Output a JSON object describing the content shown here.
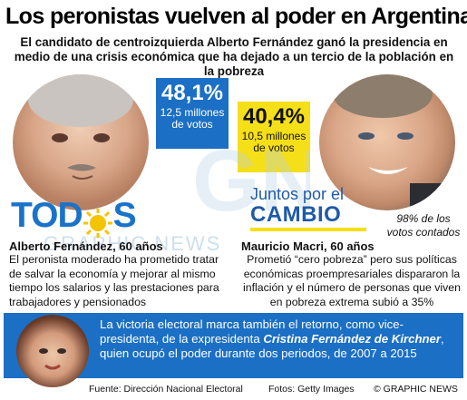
{
  "headline": "Los peronistas vuelven al poder en Argentina",
  "subheadline": "El candidato de centroizquierda Alberto Fernández ganó la presidencia en medio de una crisis económica que ha dejado a un tercio de la población en la pobreza",
  "fernandez": {
    "percent": "48,1%",
    "votes": "12,5 millones de votos",
    "party_logo": "TODOS",
    "name": "Alberto Fernández, 60 años",
    "description": "El peronista moderado ha prometido tratar de salvar la economía y mejorar al mismo tiempo los salarios y las prestaciones para trabajadores y pensionados"
  },
  "macri": {
    "percent": "40,4%",
    "votes": "10,5 millones de votos",
    "party_logo_top": "Juntos por el",
    "party_logo_bottom": "CAMBIO",
    "name": "Mauricio Macri, 60 años",
    "description": "Prometió “cero pobreza” pero sus políticas económicas proempresariales dispararon la inflación y el número de personas que viven en pobreza extrema subió a 35%"
  },
  "counted_note": "98% de los votos contados",
  "watermark": "GRAPHIC NEWS",
  "panel": {
    "text_before": "La victoria electoral marca también el retorno, como vice-presidenta, de la expresidenta ",
    "highlight": "Cristina Fernández de Kirchner",
    "text_after": ", quien ocupó el poder durante dos periodos, de 2007 a 2015"
  },
  "credits": {
    "source": "Fuente: Dirección Nacional Electoral",
    "photos": "Fotos: Getty Images",
    "copyright": "© GRAPHIC NEWS"
  },
  "colors": {
    "fernandez_blue": "#1b6fc4",
    "macri_yellow": "#f5df18",
    "todos_sun": "#f5c400"
  },
  "icons": {
    "sun": "sun-icon"
  }
}
